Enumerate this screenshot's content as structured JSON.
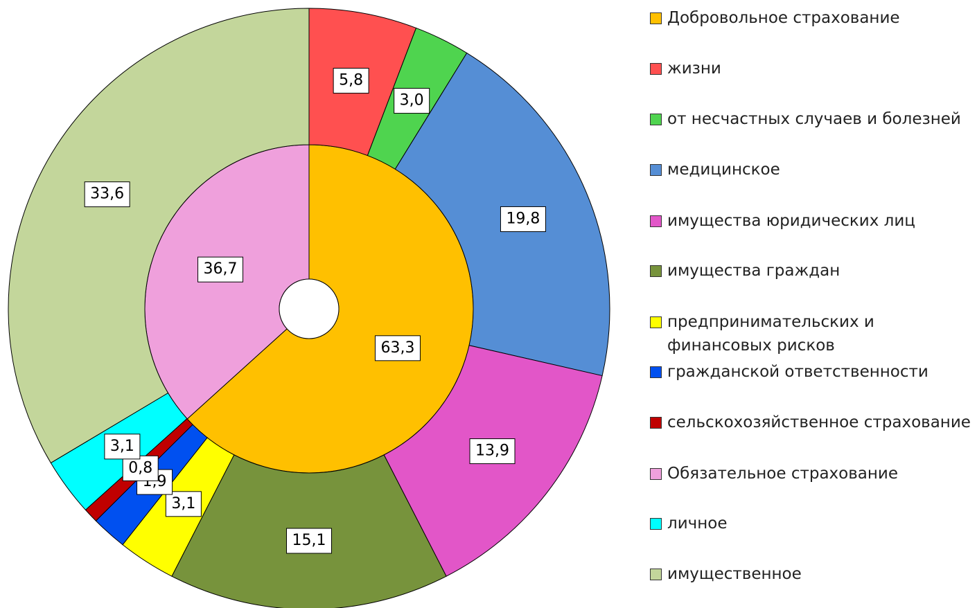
{
  "chart_data": {
    "type": "nested-donut",
    "rings": [
      {
        "categories": [
          "Добровольное страхование",
          "Обязательное страхование"
        ],
        "values": [
          63.3,
          36.7
        ],
        "value_labels": [
          "63,3",
          "36,7"
        ],
        "colors": [
          "#ffc000",
          "#efa0dc"
        ]
      },
      {
        "categories": [
          "жизни",
          "от несчастных случаев и болезней",
          "медицинское",
          "имущества юридических лиц",
          "имущества граждан",
          "предпринимательских и финансовых рисков",
          "гражданской ответственности",
          "сельскохозяйственное страхование",
          "личное",
          "имущественное"
        ],
        "values": [
          5.8,
          3.0,
          19.8,
          13.9,
          15.1,
          3.1,
          1.9,
          0.8,
          3.1,
          33.6
        ],
        "value_labels": [
          "5,8",
          "3,0",
          "19,8",
          "13,9",
          "15,1",
          "3,1",
          "1,9",
          "0,8",
          "3,1",
          "33,6"
        ],
        "colors": [
          "#ff5050",
          "#4fd44f",
          "#558ed5",
          "#e256c8",
          "#77933c",
          "#ffff00",
          "#0050f0",
          "#c00000",
          "#00ffff",
          "#c3d69b"
        ]
      }
    ]
  }
}
